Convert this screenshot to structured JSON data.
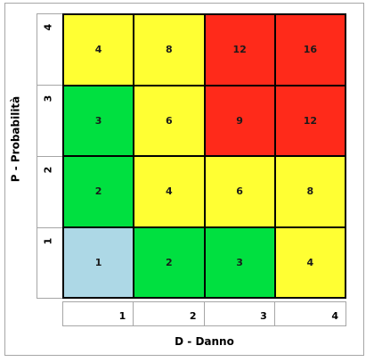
{
  "chart_data": {
    "type": "heatmap",
    "xlabel": "D - Danno",
    "ylabel": "P - Probabilità",
    "x_categories": [
      "1",
      "2",
      "3",
      "4"
    ],
    "y_categories": [
      "1",
      "2",
      "3",
      "4"
    ],
    "values": [
      [
        1,
        2,
        3,
        4
      ],
      [
        2,
        4,
        6,
        8
      ],
      [
        3,
        6,
        9,
        12
      ],
      [
        4,
        8,
        12,
        16
      ]
    ],
    "cell_colors": [
      [
        "#add8e6",
        "#00e040",
        "#00e040",
        "#ffff33"
      ],
      [
        "#00e040",
        "#ffff33",
        "#ffff33",
        "#ffff33"
      ],
      [
        "#00e040",
        "#ffff33",
        "#ff2a1a",
        "#ff2a1a"
      ],
      [
        "#ffff33",
        "#ffff33",
        "#ff2a1a",
        "#ff2a1a"
      ]
    ],
    "grid": true,
    "legend": "none"
  }
}
